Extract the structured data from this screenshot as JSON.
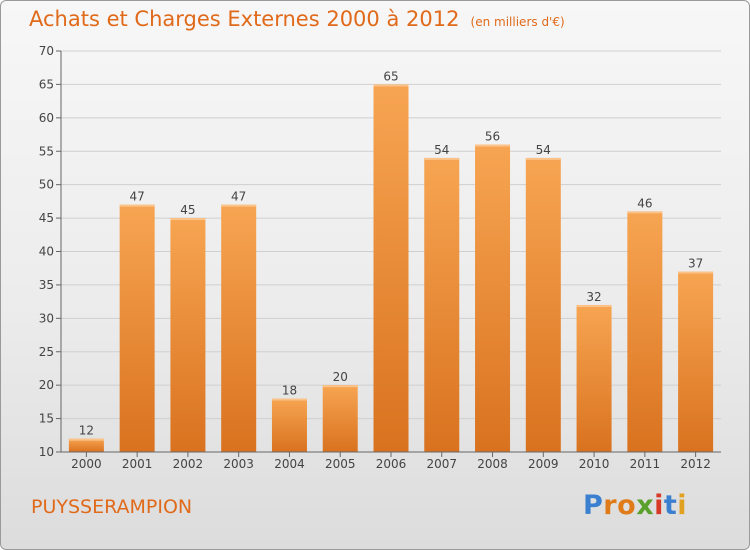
{
  "title": {
    "main": "Achats et Charges Externes 2000 à 2012",
    "unit": "(en milliers d'€)"
  },
  "commune": "PUYSSERAMPION",
  "logo": {
    "letters": [
      {
        "ch": "P",
        "color": "#3a7fd0"
      },
      {
        "ch": "r",
        "color": "#e07b1a"
      },
      {
        "ch": "o",
        "color": "#e07b1a"
      },
      {
        "ch": "x",
        "color": "#5aa02c"
      },
      {
        "ch": "i",
        "color": "#d83a2a"
      },
      {
        "ch": "t",
        "color": "#3a7fd0"
      },
      {
        "ch": "i",
        "color": "#e0a020"
      }
    ]
  },
  "chart_data": {
    "type": "bar",
    "categories": [
      "2000",
      "2001",
      "2002",
      "2003",
      "2004",
      "2005",
      "2006",
      "2007",
      "2008",
      "2009",
      "2010",
      "2011",
      "2012"
    ],
    "values": [
      12,
      47,
      45,
      47,
      18,
      20,
      65,
      54,
      56,
      54,
      32,
      46,
      37
    ],
    "ylim": [
      10,
      70
    ],
    "yticks": [
      10,
      15,
      20,
      25,
      30,
      35,
      40,
      45,
      50,
      55,
      60,
      65,
      70
    ],
    "grid": true,
    "data_labels": true,
    "bar_color_top": "#f7a552",
    "bar_color_bottom": "#d9721f"
  }
}
